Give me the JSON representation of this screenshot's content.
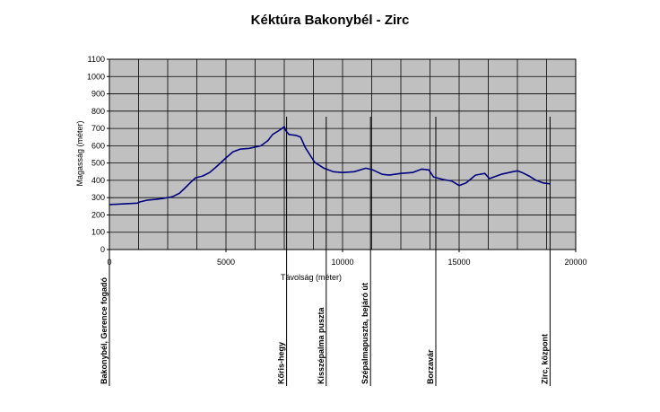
{
  "chart_data": {
    "type": "line",
    "title": "Kéktúra Bakonybél - Zirc",
    "xlabel": "Távolság (méter)",
    "ylabel": "Magasság (méter)",
    "xlim": [
      0,
      20000
    ],
    "ylim": [
      0,
      1100
    ],
    "x_ticks": [
      0,
      5000,
      10000,
      15000,
      20000
    ],
    "y_ticks": [
      0,
      100,
      200,
      300,
      400,
      500,
      600,
      700,
      800,
      900,
      1000,
      1100
    ],
    "grid": true,
    "plot_background": "#c0c0c0",
    "series": [
      {
        "color": "#000080",
        "points": [
          [
            0,
            260
          ],
          [
            1200,
            268
          ],
          [
            1300,
            275
          ],
          [
            1600,
            285
          ],
          [
            2000,
            290
          ],
          [
            2300,
            295
          ],
          [
            2700,
            305
          ],
          [
            3000,
            325
          ],
          [
            3200,
            350
          ],
          [
            3500,
            390
          ],
          [
            3700,
            415
          ],
          [
            4000,
            425
          ],
          [
            4300,
            445
          ],
          [
            4600,
            480
          ],
          [
            5000,
            530
          ],
          [
            5300,
            565
          ],
          [
            5600,
            580
          ],
          [
            6000,
            585
          ],
          [
            6500,
            600
          ],
          [
            6800,
            630
          ],
          [
            7000,
            665
          ],
          [
            7300,
            690
          ],
          [
            7500,
            710
          ],
          [
            7550,
            690
          ],
          [
            7700,
            665
          ],
          [
            8000,
            660
          ],
          [
            8200,
            650
          ],
          [
            8400,
            590
          ],
          [
            8800,
            505
          ],
          [
            9200,
            470
          ],
          [
            9600,
            450
          ],
          [
            10000,
            445
          ],
          [
            10500,
            450
          ],
          [
            11000,
            470
          ],
          [
            11300,
            460
          ],
          [
            11700,
            435
          ],
          [
            12000,
            430
          ],
          [
            12500,
            440
          ],
          [
            13000,
            445
          ],
          [
            13400,
            465
          ],
          [
            13700,
            460
          ],
          [
            13900,
            420
          ],
          [
            14300,
            405
          ],
          [
            14700,
            395
          ],
          [
            15000,
            370
          ],
          [
            15300,
            385
          ],
          [
            15700,
            430
          ],
          [
            16100,
            440
          ],
          [
            16300,
            410
          ],
          [
            16800,
            435
          ],
          [
            17300,
            450
          ],
          [
            17500,
            455
          ],
          [
            17700,
            445
          ],
          [
            18000,
            425
          ],
          [
            18300,
            400
          ],
          [
            18600,
            385
          ],
          [
            18900,
            380
          ]
        ]
      }
    ],
    "markers": [
      {
        "x": 0,
        "label": "Bakonybél, Gerence fogadó"
      },
      {
        "x": 7600,
        "label": "Kőris-hegy"
      },
      {
        "x": 9300,
        "label": "Kisszépalma puszta"
      },
      {
        "x": 11200,
        "label": "Szépalmapuszta, bejáró út"
      },
      {
        "x": 14000,
        "label": "Borzavár"
      },
      {
        "x": 18900,
        "label": "Zirc, központ"
      }
    ]
  }
}
